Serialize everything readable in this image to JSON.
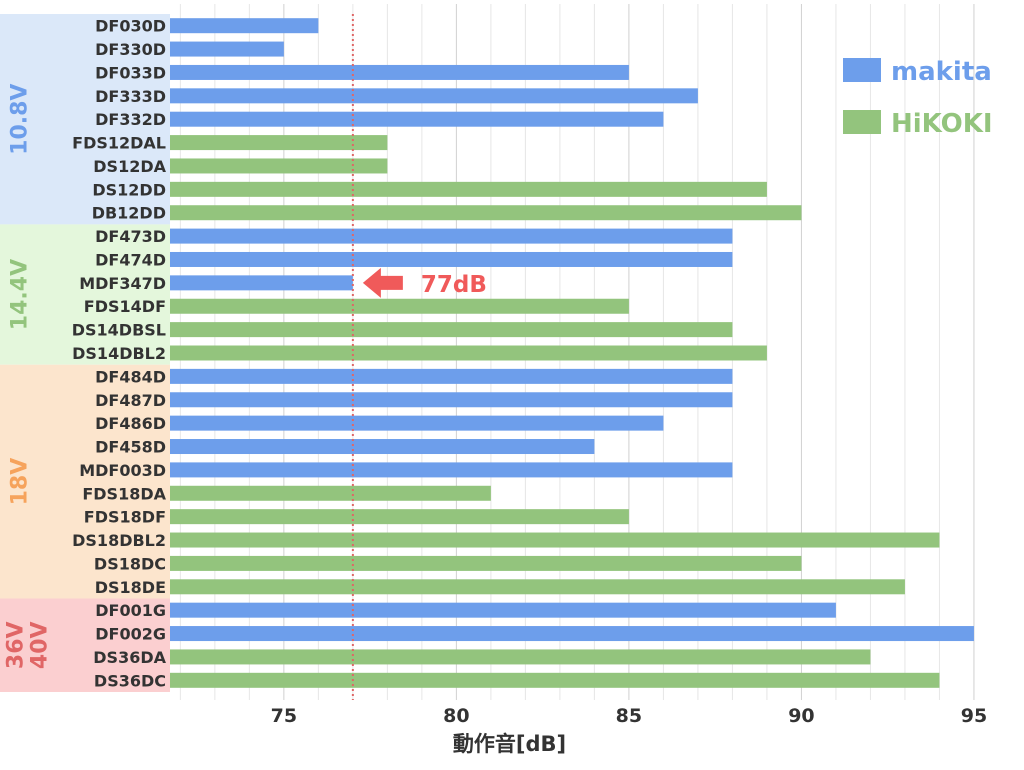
{
  "chart_data": {
    "type": "bar",
    "orientation": "horizontal",
    "xlabel": "動作音[dB]",
    "xlim": [
      71.7,
      95.9
    ],
    "xticks": [
      75,
      80,
      85,
      90,
      95
    ],
    "minor_grid_step": 1,
    "grid": true,
    "categories": [
      "DF030D",
      "DF330D",
      "DF033D",
      "DF333D",
      "DF332D",
      "FDS12DAL",
      "DS12DA",
      "DS12DD",
      "DB12DD",
      "DF473D",
      "DF474D",
      "MDF347D",
      "FDS14DF",
      "DS14DBSL",
      "DS14DBL2",
      "DF484D",
      "DF487D",
      "DF486D",
      "DF458D",
      "MDF003D",
      "FDS18DA",
      "FDS18DF",
      "DS18DBL2",
      "DS18DC",
      "DS18DE",
      "DF001G",
      "DF002G",
      "DS36DA",
      "DS36DC"
    ],
    "values": [
      76,
      75,
      85,
      87,
      86,
      78,
      78,
      89,
      90,
      88,
      88,
      77,
      85,
      88,
      89,
      88,
      88,
      86,
      84,
      88,
      81,
      85,
      94,
      90,
      93,
      91,
      95,
      92,
      94
    ],
    "brands": [
      "makita",
      "makita",
      "makita",
      "makita",
      "makita",
      "HiKOKI",
      "HiKOKI",
      "HiKOKI",
      "HiKOKI",
      "makita",
      "makita",
      "makita",
      "HiKOKI",
      "HiKOKI",
      "HiKOKI",
      "makita",
      "makita",
      "makita",
      "makita",
      "makita",
      "HiKOKI",
      "HiKOKI",
      "HiKOKI",
      "HiKOKI",
      "HiKOKI",
      "makita",
      "makita",
      "HiKOKI",
      "HiKOKI"
    ],
    "series": [
      {
        "name": "makita",
        "color": "#6d9eeb"
      },
      {
        "name": "HiKOKI",
        "color": "#93c47d"
      }
    ],
    "legend_position": "top-right",
    "voltage_groups": [
      {
        "label": "10.8V",
        "start": 0,
        "end": 8,
        "bg": "#dbe8f9",
        "color": "#6d9eeb"
      },
      {
        "label": "14.4V",
        "start": 9,
        "end": 14,
        "bg": "#e4f7dc",
        "color": "#93c47d"
      },
      {
        "label": "18V",
        "start": 15,
        "end": 24,
        "bg": "#fce5cd",
        "color": "#f6a35c"
      },
      {
        "label": "36V\n40V",
        "start": 25,
        "end": 28,
        "bg": "#fbcfd0",
        "color": "#e06666"
      }
    ],
    "reference_line": {
      "value": 77,
      "color": "#e06666",
      "style": "dotted"
    },
    "annotation": {
      "text": "77dB",
      "color": "#f05a5a",
      "category": "MDF347D"
    }
  }
}
